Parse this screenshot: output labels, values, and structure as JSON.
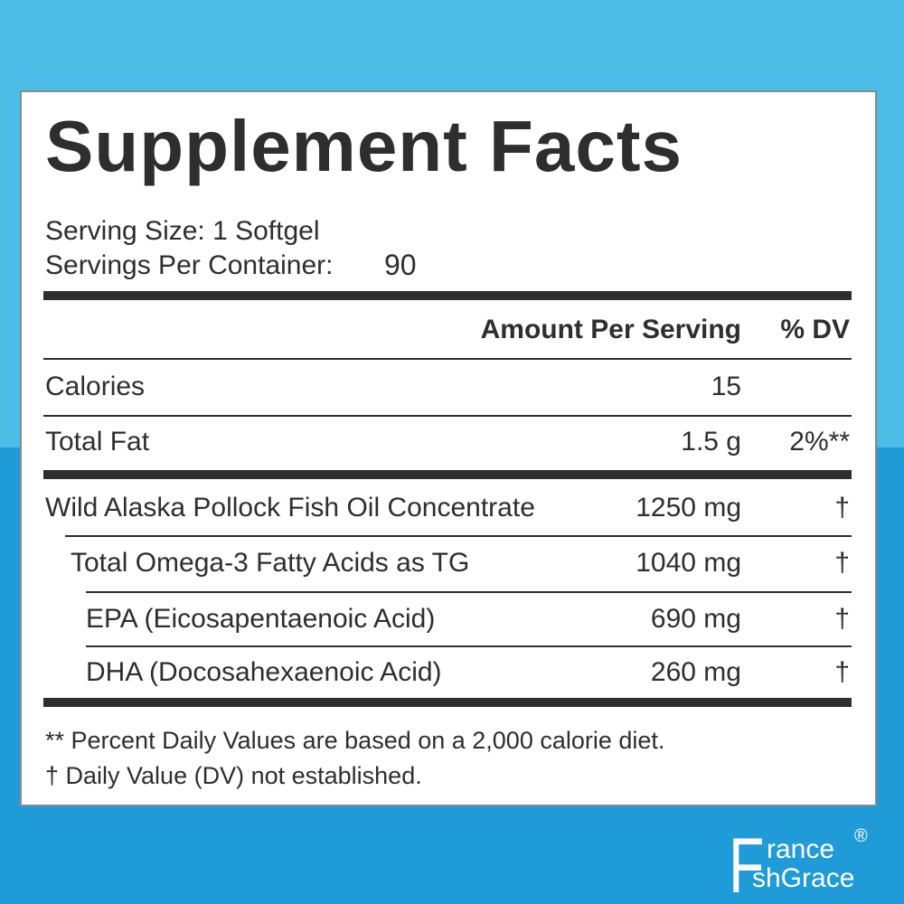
{
  "label": {
    "title": "Supplement Facts",
    "serving_size": "Serving Size: 1 Softgel",
    "servings_label": "Servings Per Container:",
    "servings_value": "90",
    "header": {
      "amount": "Amount Per Serving",
      "dv": "% DV"
    },
    "rows": [
      {
        "name": "Calories",
        "amount": "15",
        "dv": null
      },
      {
        "name": "Total Fat",
        "amount": "1.5 g",
        "dv": "2%**"
      },
      {
        "name": "Wild Alaska Pollock Fish Oil Concentrate",
        "amount": "1250 mg",
        "dv": "†"
      },
      {
        "name": "Total Omega-3 Fatty Acids as TG",
        "amount": "1040 mg",
        "dv": "†"
      },
      {
        "name": "EPA (Eicosapentaenoic Acid)",
        "amount": "690 mg",
        "dv": "†"
      },
      {
        "name": "DHA (Docosahexaenoic Acid)",
        "amount": "260 mg",
        "dv": "†"
      }
    ],
    "footnotes": [
      "** Percent Daily Values are based on a 2,000 calorie diet.",
      "†  Daily Value (DV) not established."
    ]
  },
  "brand": {
    "initial": "F",
    "line1": "rance",
    "line2": "shGrace",
    "mark": "®"
  }
}
